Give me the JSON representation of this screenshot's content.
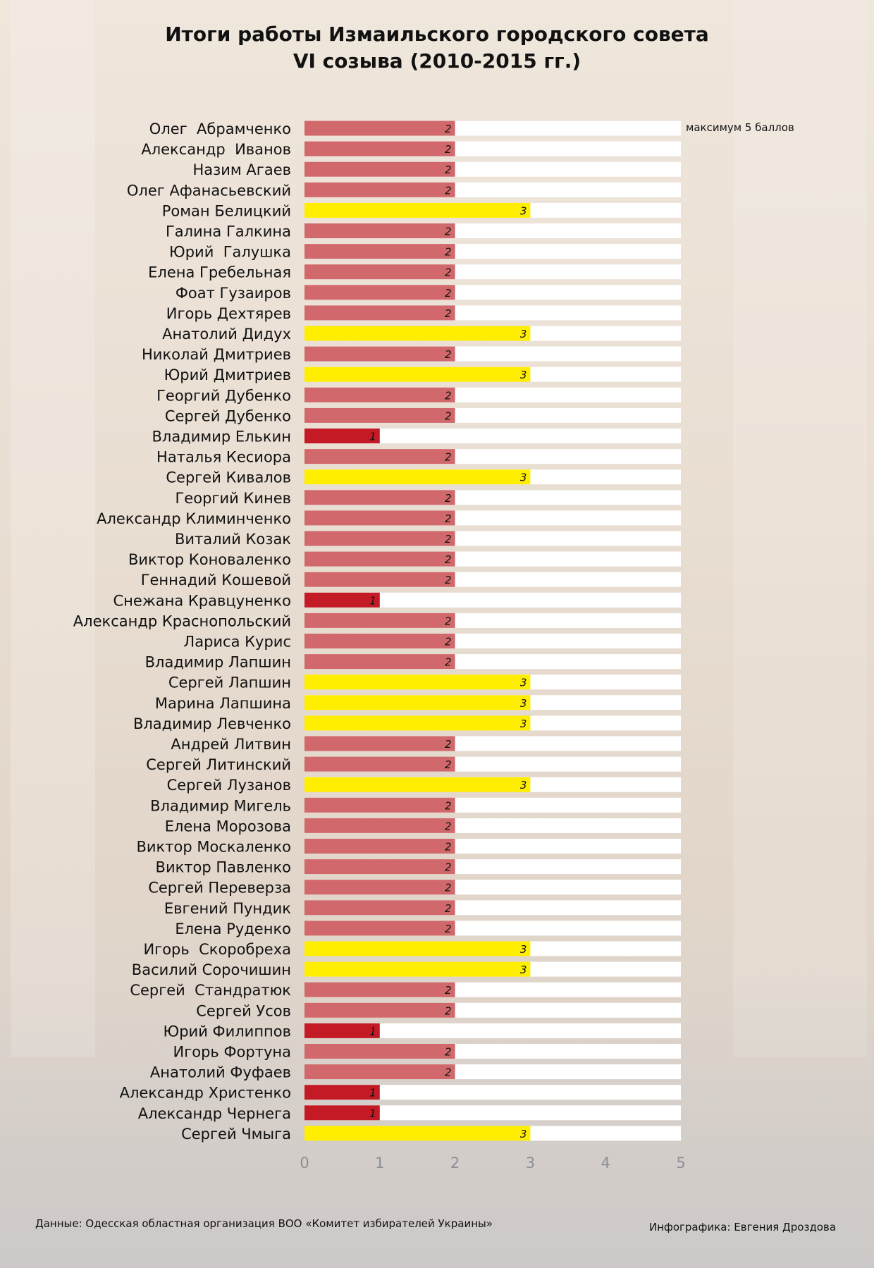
{
  "title": [
    "Итоги работы Измаильского городского совета",
    "VI созыва (2010-2015 гг.)"
  ],
  "max_note": "максимум 5 баллов",
  "footer": {
    "source": "Данные: Одесская областная организация ВОО «Комитет избирателей Украины»",
    "credit": "Инфографика: Евгения Дроздова"
  },
  "colors": {
    "score1": "#c31a26",
    "score2": "#d1686b",
    "score3": "#ffee00",
    "track": "#ffffff"
  },
  "chart_data": {
    "type": "bar",
    "orientation": "horizontal",
    "title": "Итоги работы Измаильского городского совета VI созыва (2010-2015 гг.)",
    "xlim": [
      0,
      5
    ],
    "ticks": [
      "0",
      "1",
      "2",
      "3",
      "4",
      "5"
    ],
    "categories": [
      "Олег  Абрамченко",
      "Александр  Иванов",
      "Назим Агаев",
      "Олег Афанасьевский",
      "Роман Белицкий",
      "Галина Галкина",
      "Юрий  Галушка",
      "Елена Гребельная",
      "Фоат Гузаиров",
      "Игорь Дехтярев",
      "Анатолий Дидух",
      "Николай Дмитриев",
      "Юрий Дмитриев",
      "Георгий Дубенко",
      "Сергей Дубенко",
      "Владимир Елькин",
      "Наталья Кесиора",
      "Сергей Кивалов",
      "Георгий Кинев",
      "Александр Климинченко",
      "Виталий Козак",
      "Виктор Коноваленко",
      "Геннадий Кошевой",
      "Снежана Кравцуненко",
      "Александр Краснопольский",
      "Лариса Курис",
      "Владимир Лапшин",
      "Сергей Лапшин",
      "Марина Лапшина",
      "Владимир Левченко",
      "Андрей Литвин",
      "Сергей Литинский",
      "Сергей Лузанов",
      "Владимир Мигель",
      "Елена Морозова",
      "Виктор Москаленко",
      "Виктор Павленко",
      "Сергей Переверза",
      "Евгений Пундик",
      "Елена Руденко",
      "Игорь  Скоробреха",
      "Василий Сорочишин",
      "Сергей  Стандратюк",
      "Сергей Усов",
      "Юрий Филиппов",
      "Игорь Фортуна",
      "Анатолий Фуфаев",
      "Александр Христенко",
      "Александр Чернега",
      "Сергей Чмыга"
    ],
    "values": [
      2,
      2,
      2,
      2,
      3,
      2,
      2,
      2,
      2,
      2,
      3,
      2,
      3,
      2,
      2,
      1,
      2,
      3,
      2,
      2,
      2,
      2,
      2,
      1,
      2,
      2,
      2,
      3,
      3,
      3,
      2,
      2,
      3,
      2,
      2,
      2,
      2,
      2,
      2,
      2,
      3,
      3,
      2,
      2,
      1,
      2,
      2,
      1,
      1,
      3
    ]
  }
}
